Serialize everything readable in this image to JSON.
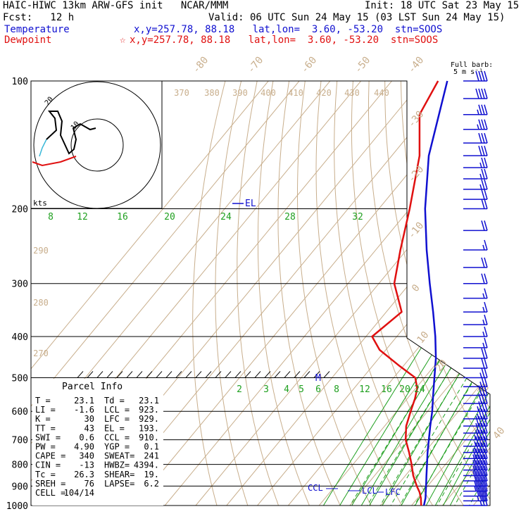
{
  "header": {
    "title": "HAIC-HIWC 13km ARW-GFS init   NCAR/MMM",
    "init": "Init: 18 UTC Sat 23 May 15",
    "fcst": "Fcst:   12 h",
    "valid": "Valid: 06 UTC Sun 24 May 15 (03 LST Sun 24 May 15)",
    "temp_label": "Temperature",
    "temp_loc": "x,y=257.78, 88.18   lat,lon=  3.60, -53.20  stn=SOOS",
    "dew_label": "Dewpoint",
    "dew_loc": "x,y=257.78, 88.18   lat,lon=  3.60, -53.20  stn=SOOS"
  },
  "colors": {
    "temperature": "#1010d0",
    "dewpoint": "#e01010",
    "isotherm": "#c8ae8c",
    "mixing_ratio": "#20a020",
    "isobar": "#000000"
  },
  "hodograph": {
    "units": "kts",
    "ring_labels": [
      "10",
      "20"
    ]
  },
  "barbs": {
    "legend_line1": "Full barb:",
    "legend_line2": "5 m s⁻¹"
  },
  "parcel": {
    "title": "Parcel Info",
    "rows": [
      [
        "T   =",
        "23.1",
        "Td  =",
        "23.1"
      ],
      [
        "LI  =",
        "-1.6",
        "LCL =",
        "923."
      ],
      [
        "K   =",
        "30",
        "LFC =",
        "929."
      ],
      [
        "TT  =",
        "43",
        "EL  =",
        "193."
      ],
      [
        "SWI =",
        "0.6",
        "CCL =",
        "910."
      ],
      [
        "PW  =",
        "4.90",
        "YGP =",
        "0.1"
      ],
      [
        "CAPE =",
        "340",
        "SWEAT=",
        "241"
      ],
      [
        "CIN  =",
        "-13",
        "HWBZ=",
        "4394."
      ],
      [
        "Tc  =",
        "26.3",
        "SHEAR=",
        "19."
      ],
      [
        "SREH =",
        "76",
        "LAPSE=",
        "6.2"
      ],
      [
        "CELL =",
        "104/14",
        "",
        ""
      ]
    ]
  },
  "chart_data": {
    "type": "line",
    "title": "Skew-T log-p sounding",
    "xlabel": "",
    "ylabel": "",
    "pressure_levels": [
      "100",
      "200",
      "300",
      "400",
      "500",
      "600",
      "700",
      "800",
      "900",
      "1000"
    ],
    "isotherm_labels": [
      "-80",
      "-70",
      "-60",
      "-50",
      "-40",
      "-30",
      "-20",
      "-10",
      "0",
      "10",
      "20",
      "30",
      "40"
    ],
    "theta_labels": [
      "370",
      "380",
      "390",
      "400",
      "410",
      "420",
      "430",
      "440",
      "290",
      "280",
      "270"
    ],
    "mixing_ratio_labels_upper": [
      "8",
      "12",
      "16",
      "20",
      "24",
      "28",
      "32"
    ],
    "mixing_ratio_labels_lower": [
      "2",
      "3",
      "4",
      "5",
      "6",
      "8",
      "12",
      "16",
      "20",
      "24"
    ],
    "level_labels": [
      "EL",
      "M",
      "CCL",
      "LCL",
      "LFC"
    ],
    "series": [
      {
        "name": "Temperature",
        "pressure": [
          1000,
          960,
          930,
          900,
          850,
          800,
          750,
          700,
          650,
          600,
          550,
          500,
          450,
          400,
          350,
          300,
          250,
          200,
          150,
          100
        ],
        "values": [
          24.0,
          22.5,
          21.0,
          19.5,
          16.8,
          14.0,
          11.0,
          8.0,
          4.8,
          1.5,
          -2.5,
          -6.8,
          -11.5,
          -17.5,
          -24.8,
          -33.5,
          -43.5,
          -55.0,
          -68.0,
          -82.0
        ]
      },
      {
        "name": "Dewpoint",
        "pressure": [
          1000,
          960,
          930,
          900,
          850,
          800,
          750,
          700,
          650,
          600,
          560,
          530,
          500,
          470,
          430,
          400,
          350,
          300,
          250,
          200,
          150,
          120,
          100
        ],
        "values": [
          23.1,
          21.0,
          19.0,
          16.5,
          12.5,
          9.0,
          5.0,
          0.5,
          -3.0,
          -5.5,
          -7.5,
          -9.5,
          -13.0,
          -21.0,
          -32.0,
          -38.0,
          -35.0,
          -45.0,
          -52.0,
          -60.0,
          -71.0,
          -82.0,
          -85.0
        ]
      }
    ],
    "wind_barbs": {
      "pressure": [
        1000,
        975,
        950,
        925,
        900,
        875,
        850,
        825,
        800,
        775,
        750,
        725,
        700,
        675,
        650,
        625,
        600,
        575,
        550,
        525,
        500,
        475,
        450,
        425,
        400,
        375,
        350,
        325,
        300,
        275,
        250,
        225,
        200,
        190,
        180,
        170,
        160,
        150,
        140,
        130,
        120,
        110,
        100
      ],
      "speed": [
        5,
        7,
        8,
        9,
        9,
        10,
        10,
        10,
        10,
        10,
        9,
        9,
        9,
        8,
        8,
        7,
        7,
        6,
        6,
        5,
        5,
        4,
        4,
        3,
        3,
        3,
        3,
        3,
        4,
        4,
        3,
        4,
        4,
        4,
        5,
        5,
        5,
        6,
        6,
        7,
        7,
        8,
        8
      ]
    }
  }
}
